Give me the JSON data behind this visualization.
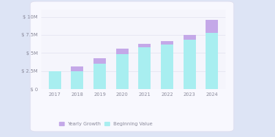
{
  "years": [
    "2017",
    "2018",
    "2019",
    "2020",
    "2021",
    "2022",
    "2023",
    "2024"
  ],
  "beginning_values": [
    2.5,
    2.5,
    3.5,
    4.8,
    5.8,
    6.2,
    6.8,
    7.8
  ],
  "yearly_growth": [
    0.0,
    0.6,
    0.8,
    0.8,
    0.5,
    0.4,
    0.7,
    1.8
  ],
  "bar_color_base": "#a8eef0",
  "bar_color_growth": "#c4a8e8",
  "bg_outer": "#dde4f5",
  "bg_card": "#f5f5fc",
  "legend_yearly": "Yearly Growth",
  "legend_beginning": "Beginning Value",
  "yticks": [
    0,
    2.5,
    5.0,
    7.5,
    10.0
  ],
  "ytick_labels": [
    "$ 0",
    "$ 2.5M",
    "$ 5M",
    "$ 7.5M",
    "$ 10M"
  ],
  "ylim": [
    0,
    11.0
  ],
  "bar_width": 0.55
}
